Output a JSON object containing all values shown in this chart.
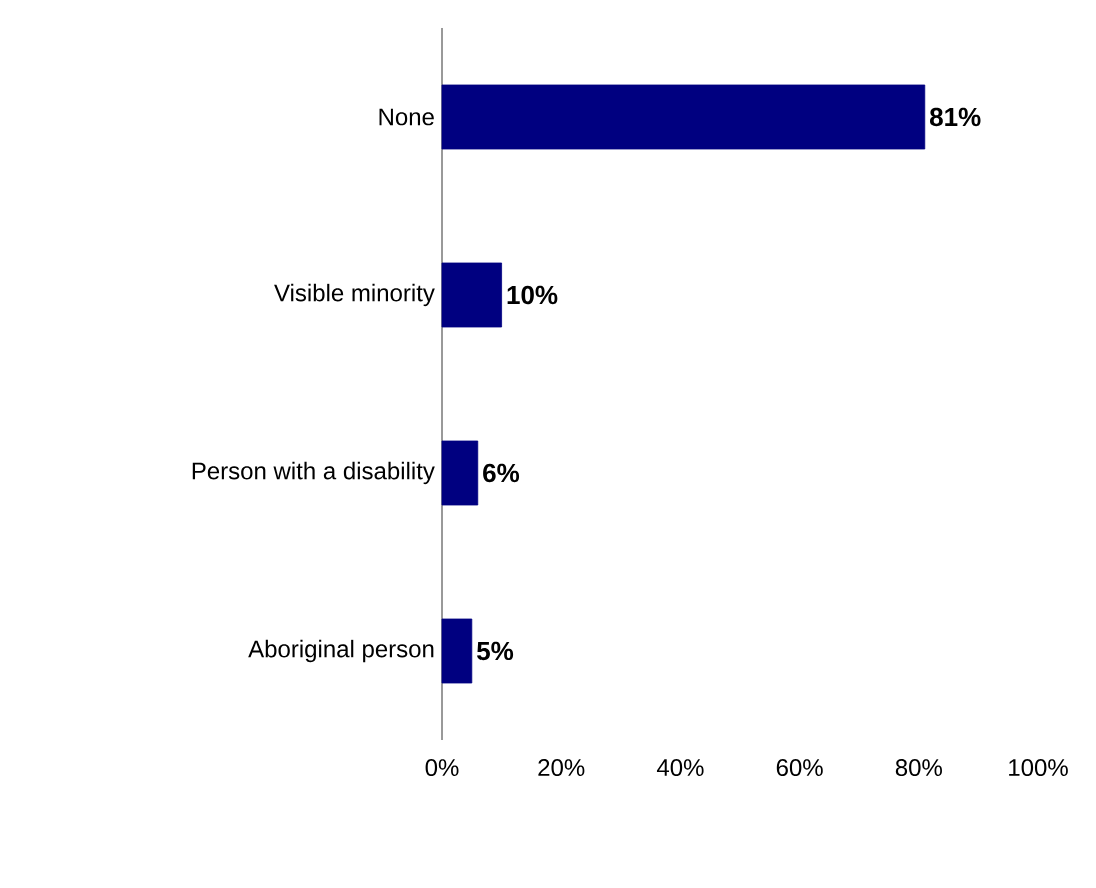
{
  "chart_data": {
    "type": "bar",
    "orientation": "horizontal",
    "categories": [
      "None",
      "Visible minority",
      "Person with a disability",
      "Aboriginal person"
    ],
    "values": [
      81,
      10,
      6,
      5
    ],
    "color": "#000080",
    "value_labels": [
      "81%",
      "10%",
      "6%",
      "5%"
    ],
    "xlim": [
      0,
      100
    ],
    "xticks": [
      {
        "value": 0,
        "label": "0%"
      },
      {
        "value": 20,
        "label": "20%"
      },
      {
        "value": 40,
        "label": "40%"
      },
      {
        "value": 60,
        "label": "60%"
      },
      {
        "value": 80,
        "label": "80%"
      },
      {
        "value": 100,
        "label": "100%"
      }
    ]
  }
}
